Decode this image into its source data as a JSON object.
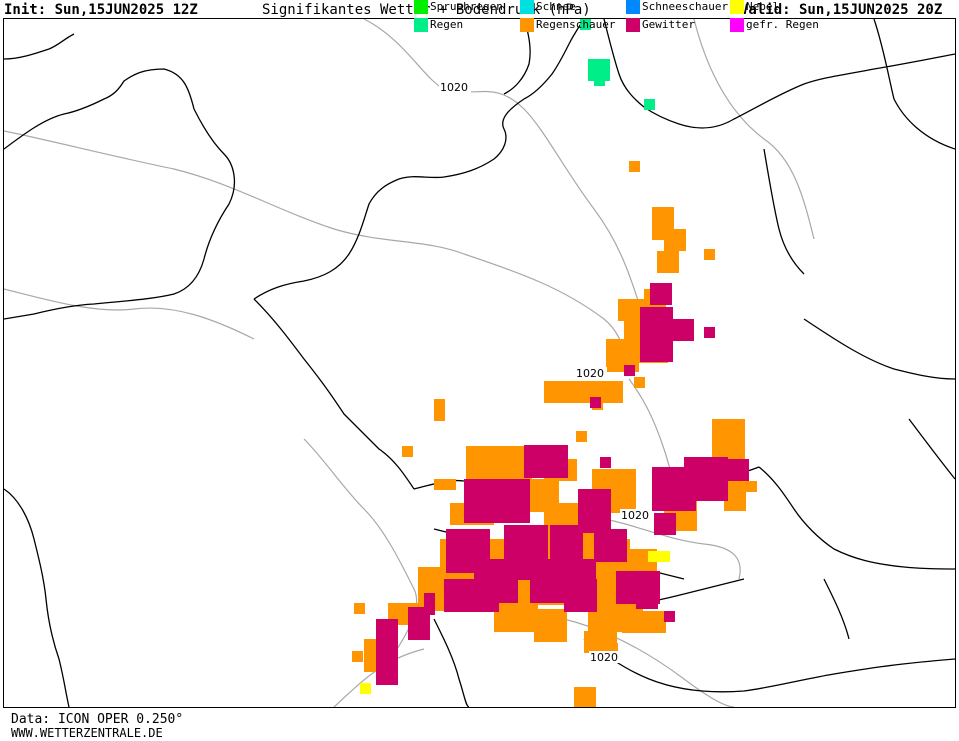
{
  "header": {
    "init": "Init: Sun,15JUN2025 12Z",
    "title": "Signifikantes Wetter + Bodendruck (hPa)",
    "valid": "Valid: Sun,15JUN2025 20Z"
  },
  "isobar_labels": [
    "1020",
    "1020",
    "1020",
    "1020"
  ],
  "legend": {
    "items": [
      {
        "label": "Spruehregen",
        "color": "#00ee00"
      },
      {
        "label": "Regen",
        "color": "#00ee88"
      },
      {
        "label": "Schnee",
        "color": "#00e0e0"
      },
      {
        "label": "Regenschauer",
        "color": "#ff9500"
      },
      {
        "label": "Schneeschauer",
        "color": "#0088ff"
      },
      {
        "label": "Gewitter",
        "color": "#cc0066"
      },
      {
        "label": "Nebel",
        "color": "#ffff00"
      },
      {
        "label": "gefr. Regen",
        "color": "#ff00ff"
      }
    ]
  },
  "footer": {
    "data_line": "Data: ICON OPER 0.250°",
    "site": "WWW.WETTERZENTRALE.DE"
  },
  "colors": {
    "regenschauer": "#ff9500",
    "gewitter": "#cc0066",
    "regen": "#00ee88",
    "nebel": "#ffff00",
    "coastline": "#000000",
    "isobar": "#a8a8a8"
  }
}
